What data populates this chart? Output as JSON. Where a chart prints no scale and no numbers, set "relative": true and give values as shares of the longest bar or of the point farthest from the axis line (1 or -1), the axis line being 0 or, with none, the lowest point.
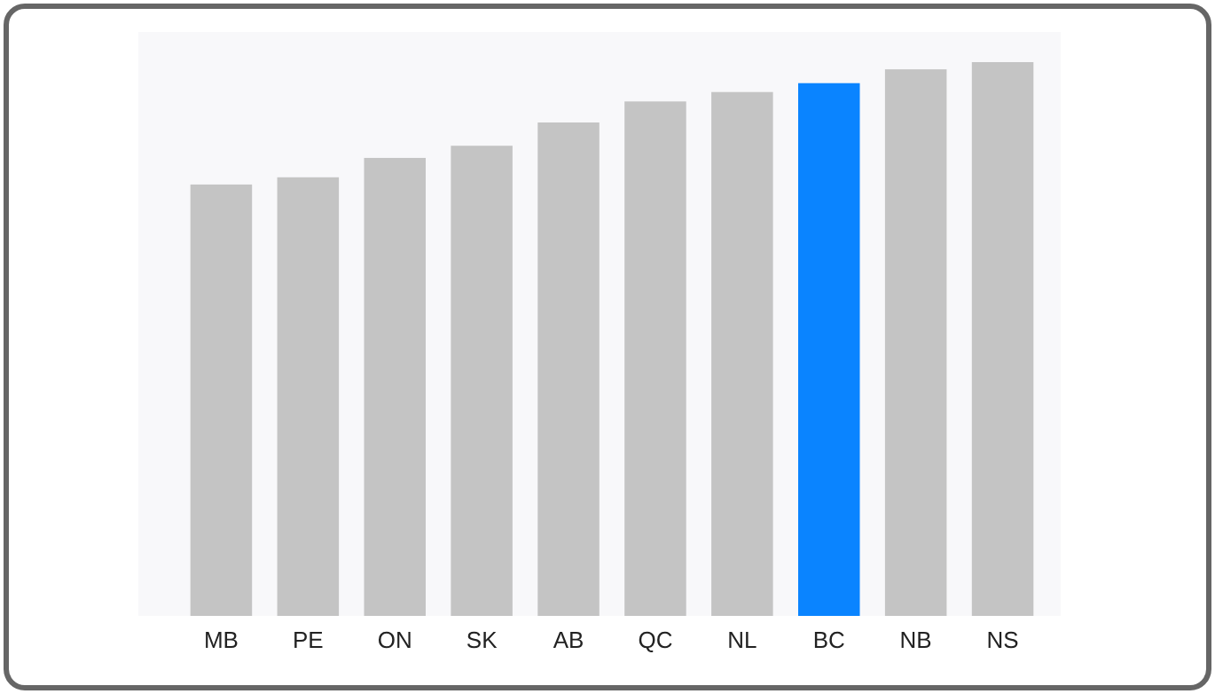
{
  "chart_data": {
    "type": "bar",
    "relative": true,
    "categories": [
      "MB",
      "PE",
      "ON",
      "SK",
      "AB",
      "QC",
      "NL",
      "BC",
      "NB",
      "NS"
    ],
    "values": [
      0.779,
      0.792,
      0.827,
      0.849,
      0.891,
      0.929,
      0.946,
      0.962,
      0.987,
      1
    ],
    "colors": [
      "#c4c4c4",
      "#c4c4c4",
      "#c4c4c4",
      "#c4c4c4",
      "#c4c4c4",
      "#c4c4c4",
      "#c4c4c4",
      "#0a84ff",
      "#c4c4c4",
      "#c4c4c4"
    ]
  }
}
